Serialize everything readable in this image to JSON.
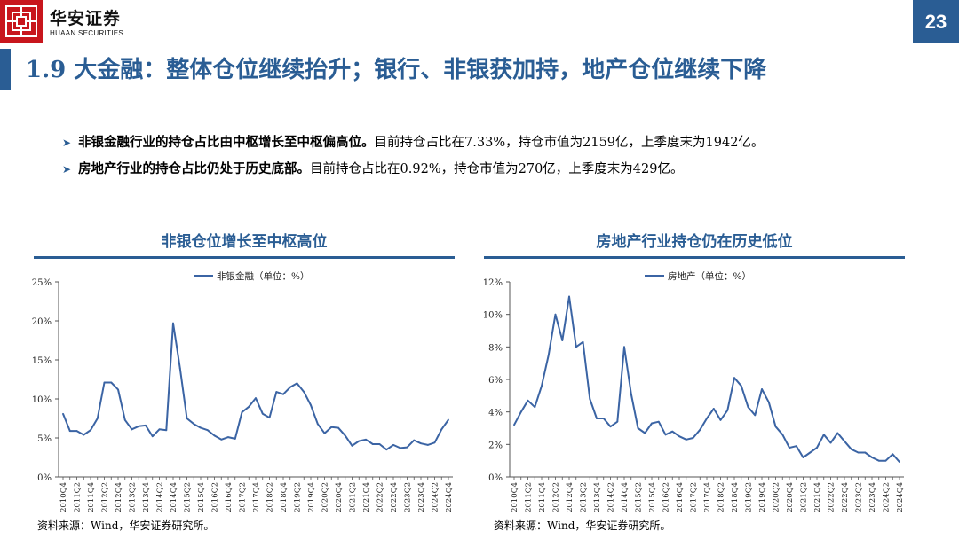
{
  "header": {
    "brand_cn": "华安证券",
    "brand_en": "HUAAN SECURITIES",
    "page_number": "23",
    "logo_color": "#c8161d",
    "accent_color": "#2a5d94"
  },
  "slide_title": "1.9 大金融：整体仓位继续抬升；银行、非银获加持，地产仓位继续下降",
  "bullets": [
    {
      "bold": "非银金融行业的持仓占比由中枢增长至中枢偏高位。",
      "text": "目前持仓占比在7.33%，持仓市值为2159亿，上季度末为1942亿。"
    },
    {
      "bold": "房地产行业的持仓占比仍处于历史底部。",
      "text": "目前持仓占比在0.92%，持仓市值为270亿，上季度末为429亿。"
    }
  ],
  "chart_data": [
    {
      "type": "line",
      "title": "非银仓位增长至中枢高位",
      "legend": "非银金融（单位：%）",
      "legend_position": "top-center",
      "line_color": "#3b64a4",
      "ylim": [
        0,
        25
      ],
      "yticks": [
        "0%",
        "5%",
        "10%",
        "15%",
        "20%",
        "25%"
      ],
      "xtick_labels": [
        "2010Q4",
        "2011Q2",
        "2011Q4",
        "2012Q2",
        "2012Q4",
        "2013Q2",
        "2013Q4",
        "2014Q2",
        "2014Q4",
        "2015Q2",
        "2015Q4",
        "2016Q2",
        "2016Q4",
        "2017Q2",
        "2017Q4",
        "2018Q2",
        "2018Q4",
        "2019Q2",
        "2019Q4",
        "2020Q2",
        "2020Q4",
        "2021Q2",
        "2021Q4",
        "2022Q2",
        "2022Q4",
        "2023Q2",
        "2023Q4",
        "2024Q2",
        "2024Q4"
      ],
      "x": [
        "2010Q4",
        "2011Q1",
        "2011Q2",
        "2011Q3",
        "2011Q4",
        "2012Q1",
        "2012Q2",
        "2012Q3",
        "2012Q4",
        "2013Q1",
        "2013Q2",
        "2013Q3",
        "2013Q4",
        "2014Q1",
        "2014Q2",
        "2014Q3",
        "2014Q4",
        "2015Q1",
        "2015Q2",
        "2015Q3",
        "2015Q4",
        "2016Q1",
        "2016Q2",
        "2016Q3",
        "2016Q4",
        "2017Q1",
        "2017Q2",
        "2017Q3",
        "2017Q4",
        "2018Q1",
        "2018Q2",
        "2018Q3",
        "2018Q4",
        "2019Q1",
        "2019Q2",
        "2019Q3",
        "2019Q4",
        "2020Q1",
        "2020Q2",
        "2020Q3",
        "2020Q4",
        "2021Q1",
        "2021Q2",
        "2021Q3",
        "2021Q4",
        "2022Q1",
        "2022Q2",
        "2022Q3",
        "2022Q4",
        "2023Q1",
        "2023Q2",
        "2023Q3",
        "2023Q4",
        "2024Q1",
        "2024Q2",
        "2024Q3",
        "2024Q4"
      ],
      "values": [
        8.1,
        5.9,
        5.9,
        5.4,
        6.0,
        7.5,
        12.1,
        12.1,
        11.2,
        7.3,
        6.1,
        6.5,
        6.6,
        5.2,
        6.1,
        6.0,
        19.7,
        13.9,
        7.5,
        6.8,
        6.3,
        6.0,
        5.3,
        4.8,
        5.1,
        4.9,
        8.3,
        9.0,
        10.1,
        8.1,
        7.6,
        10.9,
        10.6,
        11.5,
        12.0,
        10.9,
        9.2,
        6.8,
        5.6,
        6.4,
        6.3,
        5.3,
        4.0,
        4.6,
        4.8,
        4.2,
        4.2,
        3.5,
        4.1,
        3.7,
        3.8,
        4.7,
        4.3,
        4.1,
        4.4,
        6.1,
        7.33
      ]
    },
    {
      "type": "line",
      "title": "房地产行业持仓仍在历史低位",
      "legend": "房地产（单位：%）",
      "legend_position": "top-center",
      "line_color": "#3b64a4",
      "ylim": [
        0,
        12
      ],
      "yticks": [
        "0%",
        "2%",
        "4%",
        "6%",
        "8%",
        "10%",
        "12%"
      ],
      "xtick_labels": [
        "2010Q4",
        "2011Q2",
        "2011Q4",
        "2012Q2",
        "2012Q4",
        "2013Q2",
        "2013Q4",
        "2014Q2",
        "2014Q4",
        "2015Q2",
        "2015Q4",
        "2016Q2",
        "2016Q4",
        "2017Q2",
        "2017Q4",
        "2018Q2",
        "2018Q4",
        "2019Q2",
        "2019Q4",
        "2020Q2",
        "2020Q4",
        "2021Q2",
        "2021Q4",
        "2022Q2",
        "2022Q4",
        "2023Q2",
        "2023Q4",
        "2024Q2",
        "2024Q4"
      ],
      "x": [
        "2010Q4",
        "2011Q1",
        "2011Q2",
        "2011Q3",
        "2011Q4",
        "2012Q1",
        "2012Q2",
        "2012Q3",
        "2012Q4",
        "2013Q1",
        "2013Q2",
        "2013Q3",
        "2013Q4",
        "2014Q1",
        "2014Q2",
        "2014Q3",
        "2014Q4",
        "2015Q1",
        "2015Q2",
        "2015Q3",
        "2015Q4",
        "2016Q1",
        "2016Q2",
        "2016Q3",
        "2016Q4",
        "2017Q1",
        "2017Q2",
        "2017Q3",
        "2017Q4",
        "2018Q1",
        "2018Q2",
        "2018Q3",
        "2018Q4",
        "2019Q1",
        "2019Q2",
        "2019Q3",
        "2019Q4",
        "2020Q1",
        "2020Q2",
        "2020Q3",
        "2020Q4",
        "2021Q1",
        "2021Q2",
        "2021Q3",
        "2021Q4",
        "2022Q1",
        "2022Q2",
        "2022Q3",
        "2022Q4",
        "2023Q1",
        "2023Q2",
        "2023Q3",
        "2023Q4",
        "2024Q1",
        "2024Q2",
        "2024Q3",
        "2024Q4"
      ],
      "values": [
        3.2,
        4.0,
        4.7,
        4.3,
        5.6,
        7.5,
        10.0,
        8.4,
        11.1,
        8.0,
        8.3,
        4.8,
        3.6,
        3.6,
        3.1,
        3.4,
        8.0,
        5.1,
        3.0,
        2.7,
        3.3,
        3.4,
        2.6,
        2.8,
        2.5,
        2.3,
        2.4,
        2.9,
        3.6,
        4.2,
        3.5,
        4.1,
        6.1,
        5.6,
        4.3,
        3.8,
        5.4,
        4.6,
        3.1,
        2.6,
        1.8,
        1.9,
        1.2,
        1.5,
        1.8,
        2.6,
        2.1,
        2.7,
        2.2,
        1.7,
        1.5,
        1.5,
        1.2,
        1.0,
        1.0,
        1.4,
        0.92
      ]
    }
  ],
  "sources": [
    "资料来源：Wind，华安证券研究所。",
    "资料来源：Wind，华安证券研究所。"
  ]
}
